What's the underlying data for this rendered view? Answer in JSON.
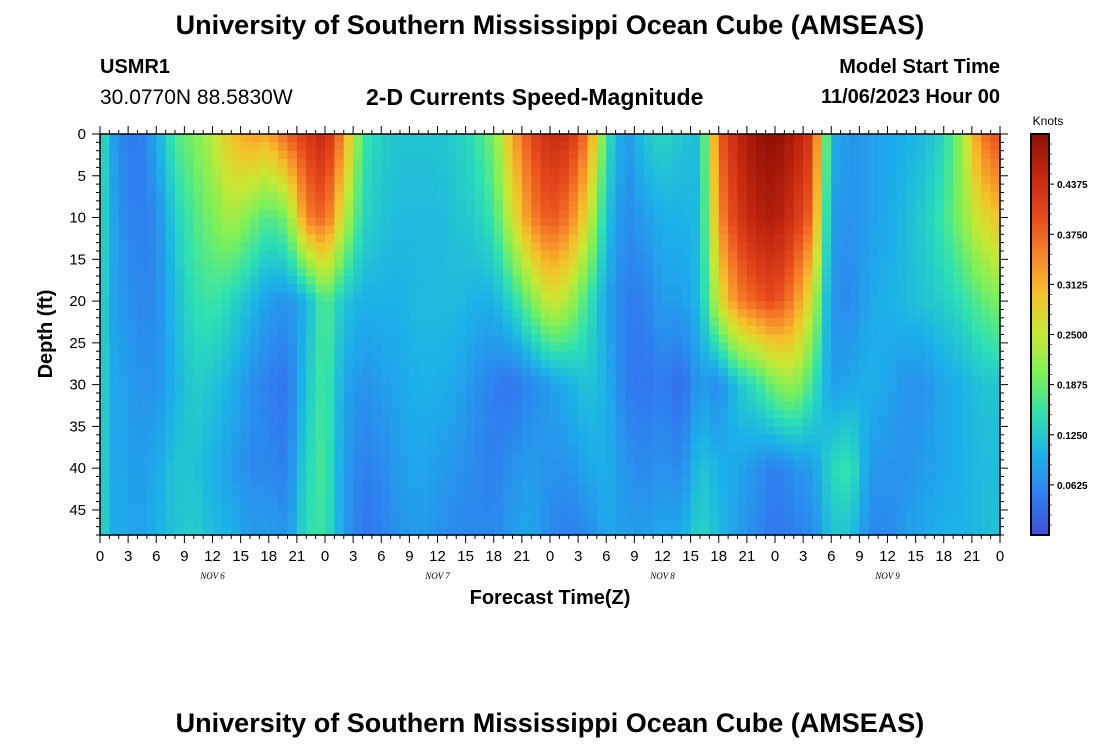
{
  "page": {
    "title": "University of Southern Mississippi Ocean Cube (AMSEAS)",
    "title_repeat": "University of Southern Mississippi Ocean Cube (AMSEAS)",
    "station_id": "USMR1",
    "coordinates": "30.0770N  88.5830W",
    "plot_title": "2-D Currents Speed-Magnitude",
    "model_start_label": "Model Start Time",
    "model_start_value": "11/06/2023 Hour 00"
  },
  "chart_data": {
    "type": "heatmap",
    "title": "2-D Currents Speed-Magnitude",
    "xlabel": "Forecast Time(Z)",
    "ylabel": "Depth (ft)",
    "x_ticks": [
      "0",
      "3",
      "6",
      "9",
      "12",
      "15",
      "18",
      "21",
      "0",
      "3",
      "6",
      "9",
      "12",
      "15",
      "18",
      "21",
      "0",
      "3",
      "6",
      "9",
      "12",
      "15",
      "18",
      "21",
      "0",
      "3",
      "6",
      "9",
      "12",
      "15",
      "18",
      "21",
      "0"
    ],
    "x_range_hours": [
      0,
      96
    ],
    "day_labels": [
      {
        "label": "NOV 6",
        "center_hour": 12
      },
      {
        "label": "NOV 7",
        "center_hour": 36
      },
      {
        "label": "NOV 8",
        "center_hour": 60
      },
      {
        "label": "NOV 9",
        "center_hour": 84
      }
    ],
    "y_ticks": [
      0,
      5,
      10,
      15,
      20,
      25,
      30,
      35,
      40,
      45
    ],
    "y_range_ft": [
      0,
      48
    ],
    "y_inverted": true,
    "colorbar": {
      "unit": "Knots",
      "min": 0.0,
      "max": 0.5,
      "tick_labels": [
        "0.0625",
        "0.1250",
        "0.1875",
        "0.2500",
        "0.3125",
        "0.3750",
        "0.4375"
      ],
      "tick_values": [
        0.0625,
        0.125,
        0.1875,
        0.25,
        0.3125,
        0.375,
        0.4375
      ],
      "colors": [
        "#3e4fd8",
        "#2f7fef",
        "#1cb2e8",
        "#2de0b2",
        "#7cf05a",
        "#c6e833",
        "#f5c22a",
        "#f7832a",
        "#e5471b",
        "#c2270f",
        "#8f0f04"
      ]
    },
    "grid": false,
    "speed_field": {
      "hours": [
        0,
        1,
        2,
        4,
        6,
        8,
        10,
        12,
        14,
        16,
        18,
        20,
        22,
        24,
        26,
        28,
        30,
        32,
        34,
        36,
        38,
        40,
        42,
        44,
        46,
        48,
        50,
        52,
        54,
        56,
        58,
        60,
        62,
        64,
        66,
        68,
        70,
        72,
        74,
        76,
        78,
        80,
        82,
        84,
        86,
        88,
        90,
        92,
        94,
        96
      ],
      "depths_ft": [
        0,
        10,
        20,
        30,
        40,
        48
      ],
      "values_knots": [
        [
          0.17,
          0.16,
          0.16,
          0.16,
          0.16,
          0.17
        ],
        [
          0.1,
          0.1,
          0.09,
          0.09,
          0.09,
          0.09
        ],
        [
          0.06,
          0.07,
          0.08,
          0.09,
          0.09,
          0.1
        ],
        [
          0.04,
          0.05,
          0.06,
          0.07,
          0.08,
          0.08
        ],
        [
          0.09,
          0.06,
          0.06,
          0.07,
          0.09,
          0.1
        ],
        [
          0.17,
          0.13,
          0.11,
          0.1,
          0.12,
          0.12
        ],
        [
          0.2,
          0.17,
          0.15,
          0.13,
          0.12,
          0.13
        ],
        [
          0.24,
          0.2,
          0.16,
          0.12,
          0.1,
          0.11
        ],
        [
          0.3,
          0.23,
          0.14,
          0.1,
          0.08,
          0.1
        ],
        [
          0.33,
          0.2,
          0.11,
          0.07,
          0.06,
          0.08
        ],
        [
          0.32,
          0.17,
          0.08,
          0.05,
          0.06,
          0.08
        ],
        [
          0.38,
          0.2,
          0.07,
          0.04,
          0.05,
          0.07
        ],
        [
          0.42,
          0.35,
          0.1,
          0.12,
          0.14,
          0.15
        ],
        [
          0.45,
          0.38,
          0.18,
          0.17,
          0.17,
          0.16
        ],
        [
          0.34,
          0.25,
          0.12,
          0.09,
          0.08,
          0.08
        ],
        [
          0.16,
          0.14,
          0.1,
          0.07,
          0.05,
          0.04
        ],
        [
          0.13,
          0.12,
          0.1,
          0.08,
          0.06,
          0.05
        ],
        [
          0.12,
          0.11,
          0.1,
          0.09,
          0.08,
          0.07
        ],
        [
          0.12,
          0.11,
          0.11,
          0.1,
          0.09,
          0.08
        ],
        [
          0.12,
          0.11,
          0.11,
          0.1,
          0.08,
          0.07
        ],
        [
          0.13,
          0.12,
          0.11,
          0.09,
          0.07,
          0.06
        ],
        [
          0.15,
          0.13,
          0.1,
          0.07,
          0.06,
          0.06
        ],
        [
          0.2,
          0.16,
          0.1,
          0.05,
          0.05,
          0.06
        ],
        [
          0.32,
          0.26,
          0.14,
          0.04,
          0.07,
          0.08
        ],
        [
          0.4,
          0.35,
          0.2,
          0.06,
          0.08,
          0.09
        ],
        [
          0.44,
          0.39,
          0.26,
          0.08,
          0.07,
          0.06
        ],
        [
          0.43,
          0.36,
          0.23,
          0.1,
          0.07,
          0.05
        ],
        [
          0.36,
          0.27,
          0.16,
          0.12,
          0.09,
          0.06
        ],
        [
          0.16,
          0.12,
          0.09,
          0.1,
          0.1,
          0.09
        ],
        [
          0.07,
          0.06,
          0.05,
          0.05,
          0.07,
          0.08
        ],
        [
          0.12,
          0.08,
          0.05,
          0.04,
          0.06,
          0.08
        ],
        [
          0.14,
          0.1,
          0.08,
          0.05,
          0.07,
          0.09
        ],
        [
          0.12,
          0.1,
          0.08,
          0.03,
          0.06,
          0.09
        ],
        [
          0.11,
          0.11,
          0.11,
          0.08,
          0.12,
          0.14
        ],
        [
          0.38,
          0.34,
          0.26,
          0.06,
          0.1,
          0.11
        ],
        [
          0.45,
          0.42,
          0.35,
          0.12,
          0.09,
          0.08
        ],
        [
          0.49,
          0.46,
          0.38,
          0.15,
          0.07,
          0.06
        ],
        [
          0.5,
          0.47,
          0.4,
          0.2,
          0.05,
          0.04
        ],
        [
          0.47,
          0.43,
          0.35,
          0.22,
          0.07,
          0.05
        ],
        [
          0.42,
          0.37,
          0.25,
          0.16,
          0.08,
          0.06
        ],
        [
          0.1,
          0.08,
          0.07,
          0.08,
          0.14,
          0.12
        ],
        [
          0.07,
          0.07,
          0.06,
          0.09,
          0.16,
          0.12
        ],
        [
          0.08,
          0.08,
          0.09,
          0.1,
          0.08,
          0.06
        ],
        [
          0.09,
          0.09,
          0.1,
          0.09,
          0.07,
          0.06
        ],
        [
          0.1,
          0.11,
          0.11,
          0.07,
          0.07,
          0.08
        ],
        [
          0.11,
          0.13,
          0.12,
          0.07,
          0.08,
          0.09
        ],
        [
          0.14,
          0.16,
          0.13,
          0.09,
          0.09,
          0.1
        ],
        [
          0.22,
          0.21,
          0.15,
          0.1,
          0.1,
          0.1
        ],
        [
          0.36,
          0.27,
          0.18,
          0.12,
          0.11,
          0.11
        ],
        [
          0.4,
          0.3,
          0.2,
          0.12,
          0.11,
          0.12
        ]
      ]
    }
  }
}
